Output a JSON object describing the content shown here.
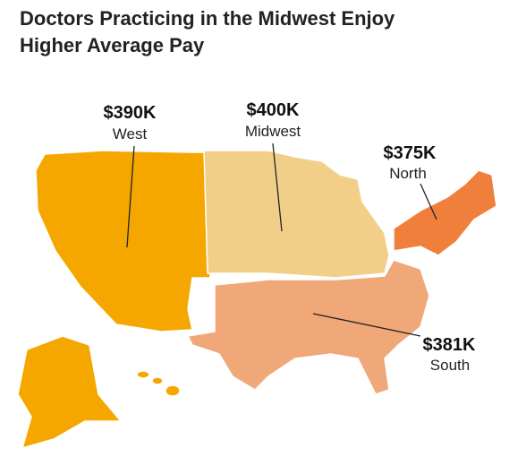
{
  "header": {
    "title_line_1": "Doctors Practicing in the Midwest Enjoy",
    "title_line_2": "Higher Average Pay"
  },
  "regions": [
    {
      "amount": "$390K",
      "name": "West",
      "color": "#f5a700"
    },
    {
      "amount": "$400K",
      "name": "Midwest",
      "color": "#f2cf88"
    },
    {
      "amount": "$375K",
      "name": "North",
      "color": "#f07f3b"
    },
    {
      "amount": "$381K",
      "name": "South",
      "color": "#f0a878"
    }
  ]
}
